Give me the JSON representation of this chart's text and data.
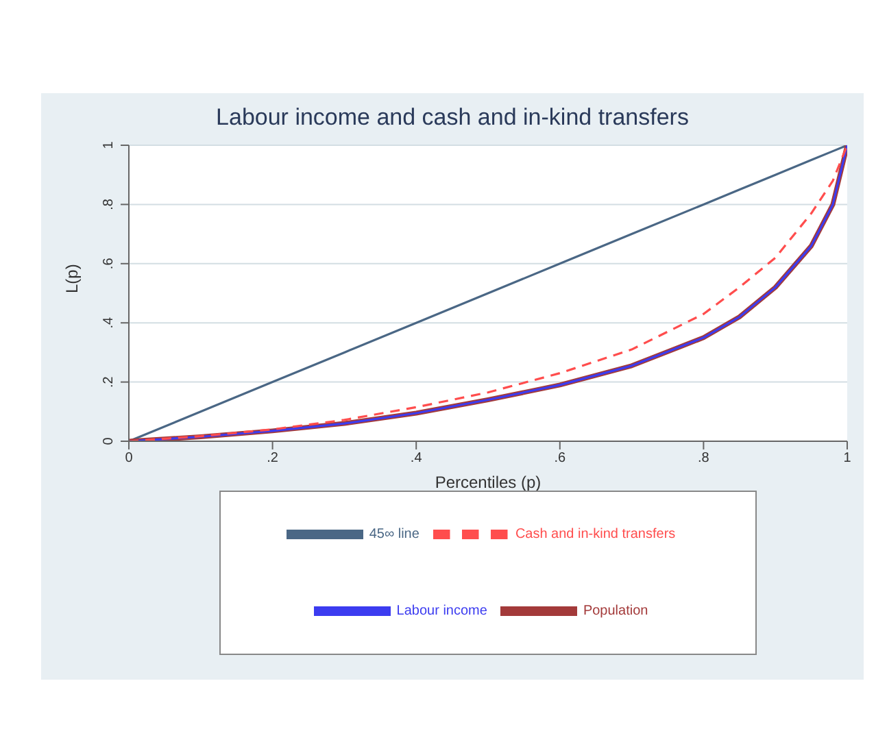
{
  "chart_data": {
    "type": "line",
    "title": "Labour income and cash and in-kind transfers",
    "xlabel": "Percentiles (p)",
    "ylabel": "L(p)",
    "x": [
      0,
      0.1,
      0.2,
      0.3,
      0.4,
      0.5,
      0.6,
      0.7,
      0.8,
      0.85,
      0.9,
      0.95,
      0.98,
      1
    ],
    "series": [
      {
        "name": "45∞ line",
        "color": "#4a6785",
        "values": [
          0,
          0.1,
          0.2,
          0.3,
          0.4,
          0.5,
          0.6,
          0.7,
          0.8,
          0.85,
          0.9,
          0.95,
          0.98,
          1
        ]
      },
      {
        "name": "Population",
        "color": "#a33a3a",
        "values": [
          0,
          0.015,
          0.035,
          0.06,
          0.095,
          0.14,
          0.19,
          0.255,
          0.35,
          0.42,
          0.52,
          0.66,
          0.8,
          1
        ]
      },
      {
        "name": "Labour income",
        "color": "#3c3cf0",
        "values": [
          0,
          0.015,
          0.035,
          0.06,
          0.095,
          0.14,
          0.19,
          0.255,
          0.35,
          0.42,
          0.52,
          0.66,
          0.8,
          1
        ]
      },
      {
        "name": "Cash and in-kind transfers",
        "color": "#ff4d4d",
        "line_style": "dashed",
        "values": [
          0,
          0.017,
          0.04,
          0.072,
          0.115,
          0.165,
          0.23,
          0.31,
          0.43,
          0.52,
          0.62,
          0.77,
          0.88,
          1
        ]
      }
    ],
    "xlim": [
      0,
      1
    ],
    "ylim": [
      0,
      1
    ],
    "xticks": [
      0,
      {
        "value": 0.2,
        "label": ".2"
      },
      {
        "value": 0.4,
        "label": ".4"
      },
      {
        "value": 0.6,
        "label": ".6"
      },
      {
        "value": 0.8,
        "label": ".8"
      },
      1
    ],
    "yticks": [
      0,
      {
        "value": 0.2,
        "label": ".2"
      },
      {
        "value": 0.4,
        "label": ".4"
      },
      {
        "value": 0.6,
        "label": ".6"
      },
      {
        "value": 0.8,
        "label": ".8"
      },
      1
    ],
    "grid": "y",
    "legend": "bottom",
    "marker": "none",
    "line_style": "solid"
  }
}
